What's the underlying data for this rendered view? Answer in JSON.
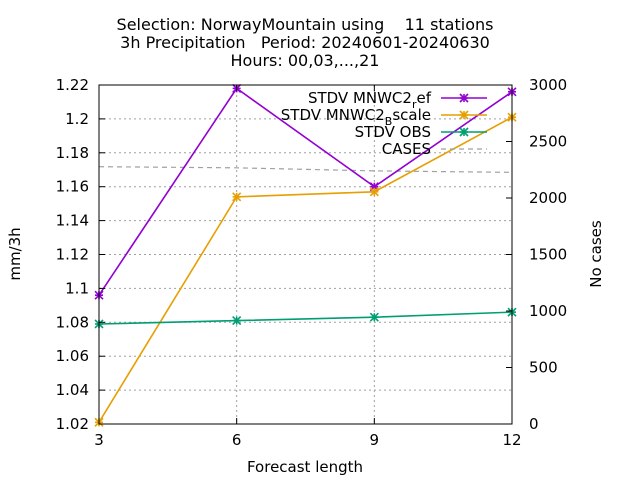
{
  "chart_data": {
    "type": "line",
    "title_lines": [
      "Selection: NorwayMountain using    11 stations",
      "3h Precipitation   Period: 20240601-20240630",
      "Hours: 00,03,...,21"
    ],
    "xlabel": "Forecast length",
    "ylabel": "mm/3h",
    "y2label": "No cases",
    "x": [
      3,
      6,
      9,
      12
    ],
    "xlim": [
      3,
      12
    ],
    "ylim": [
      1.02,
      1.22
    ],
    "y2lim": [
      0,
      3000
    ],
    "x_ticks": [
      "3",
      "6",
      "9",
      "12"
    ],
    "y_ticks": [
      "1.02",
      "1.04",
      "1.06",
      "1.08",
      "1.1",
      "1.12",
      "1.14",
      "1.16",
      "1.18",
      "1.2",
      "1.22"
    ],
    "y2_ticks": [
      "0",
      "500",
      "1000",
      "1500",
      "2000",
      "2500",
      "3000"
    ],
    "grid": true,
    "legend_position": "top-right",
    "series": [
      {
        "name_main": "STDV MNWC2",
        "name_sub": "r",
        "name_tail": "ef",
        "values": [
          1.096,
          1.218,
          1.16,
          1.216
        ],
        "color": "#9400d3",
        "marker": "star",
        "axis": "y"
      },
      {
        "name_main": "STDV MNWC2",
        "name_sub": "B",
        "name_tail": "scale",
        "values": [
          1.021,
          1.154,
          1.157,
          1.201
        ],
        "color": "#e69f00",
        "marker": "star",
        "axis": "y"
      },
      {
        "name_main": "STDV OBS",
        "name_sub": "",
        "name_tail": "",
        "values": [
          1.079,
          1.081,
          1.083,
          1.086
        ],
        "color": "#009e73",
        "marker": "star",
        "axis": "y"
      },
      {
        "name_main": "CASES",
        "name_sub": "",
        "name_tail": "",
        "values": [
          2277,
          2267,
          2240,
          2227
        ],
        "color": "#a0a0a0",
        "marker": "none",
        "dashed": true,
        "axis": "y2"
      }
    ]
  }
}
